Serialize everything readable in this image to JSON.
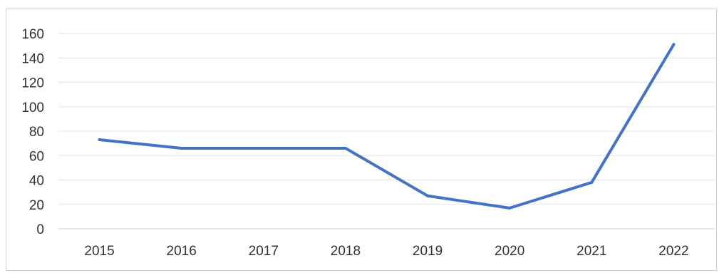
{
  "chart_data": {
    "type": "line",
    "title": "",
    "xlabel": "",
    "ylabel": "",
    "categories": [
      "2015",
      "2016",
      "2017",
      "2018",
      "2019",
      "2020",
      "2021",
      "2022"
    ],
    "series": [
      {
        "values": [
          73,
          66,
          66,
          66,
          27,
          17,
          38,
          151
        ],
        "color": "#4472c4"
      }
    ],
    "ylim": [
      0,
      160
    ],
    "yticks": [
      "0",
      "20",
      "40",
      "60",
      "80",
      "100",
      "120",
      "140",
      "160"
    ],
    "grid": true,
    "legend": "none"
  }
}
